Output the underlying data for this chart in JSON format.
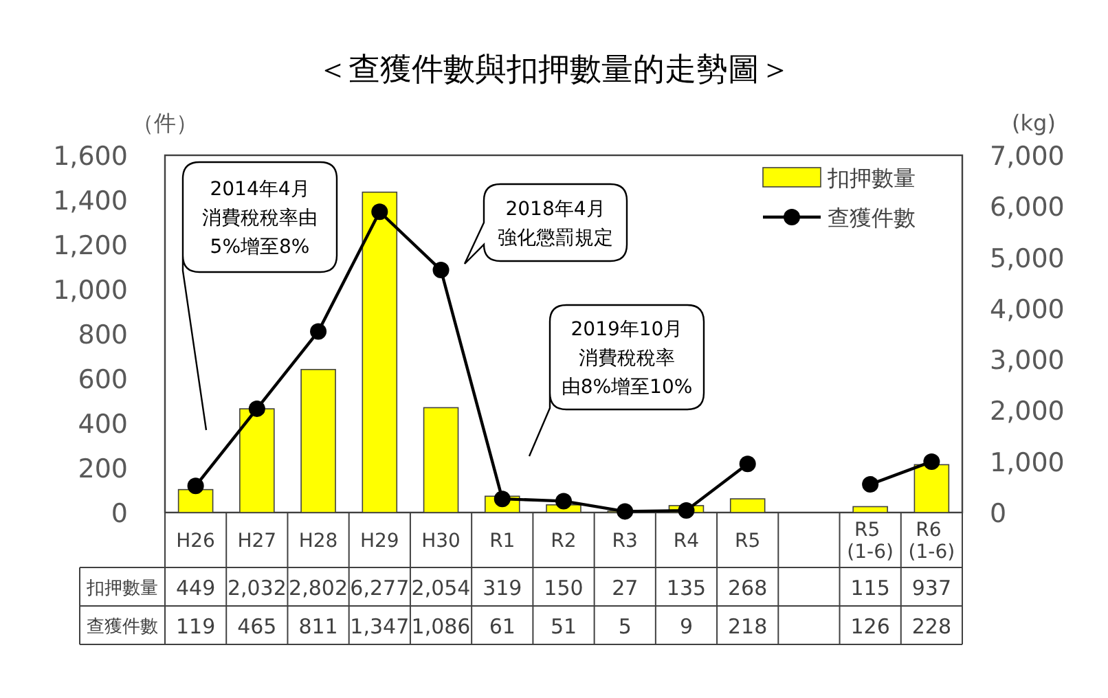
{
  "chart_data": {
    "type": "bar",
    "title": "＜查獲件數與扣押數量的走勢圖＞",
    "ylabel": "（件）",
    "y2label": "(kg)",
    "categories": [
      "H26",
      "H27",
      "H28",
      "H29",
      "H30",
      "R1",
      "R2",
      "R3",
      "R4",
      "R5",
      null,
      "R5 (1-6)",
      "R6 (1-6)"
    ],
    "series": [
      {
        "name": "扣押數量",
        "axis": "y2",
        "color": "#ffff00",
        "values": [
          449,
          2032,
          2802,
          6277,
          2054,
          319,
          150,
          27,
          135,
          268,
          null,
          115,
          937
        ],
        "value_labels": [
          "449",
          "2,032",
          "2,802",
          "6,277",
          "2,054",
          "319",
          "150",
          "27",
          "135",
          "268",
          null,
          "115",
          "937"
        ]
      },
      {
        "name": "查獲件數",
        "type": "line",
        "axis": "y",
        "color": "#000000",
        "values": [
          119,
          465,
          811,
          1347,
          1086,
          61,
          51,
          5,
          9,
          218,
          null,
          126,
          228
        ],
        "value_labels": [
          "119",
          "465",
          "811",
          "1,347",
          "1,086",
          "61",
          "51",
          "5",
          "9",
          "218",
          null,
          "126",
          "228"
        ]
      }
    ],
    "ylim": [
      0,
      1600
    ],
    "yticks": [
      0,
      200,
      400,
      600,
      800,
      {
        "value": 1000,
        "label": "1,000"
      },
      {
        "value": 1200,
        "label": "1,200"
      },
      {
        "value": 1400,
        "label": "1,400"
      },
      {
        "value": 1600,
        "label": "1,600"
      }
    ],
    "y2lim": [
      0,
      7000
    ],
    "y2ticks": [
      0,
      {
        "value": 1000,
        "label": "1,000"
      },
      {
        "value": 2000,
        "label": "2,000"
      },
      {
        "value": 3000,
        "label": "3,000"
      },
      {
        "value": 4000,
        "label": "4,000"
      },
      {
        "value": 5000,
        "label": "5,000"
      },
      {
        "value": 6000,
        "label": "6,000"
      },
      {
        "value": 7000,
        "label": "7,000"
      }
    ],
    "annotations": [
      "2014年4月消費稅稅率由5%增至8%",
      "2018年4月強化懲罰規定",
      "2019年10月消費稅稅率由8%增至10%"
    ],
    "legend": "top right",
    "marker": "circle",
    "line_style": "solid"
  }
}
